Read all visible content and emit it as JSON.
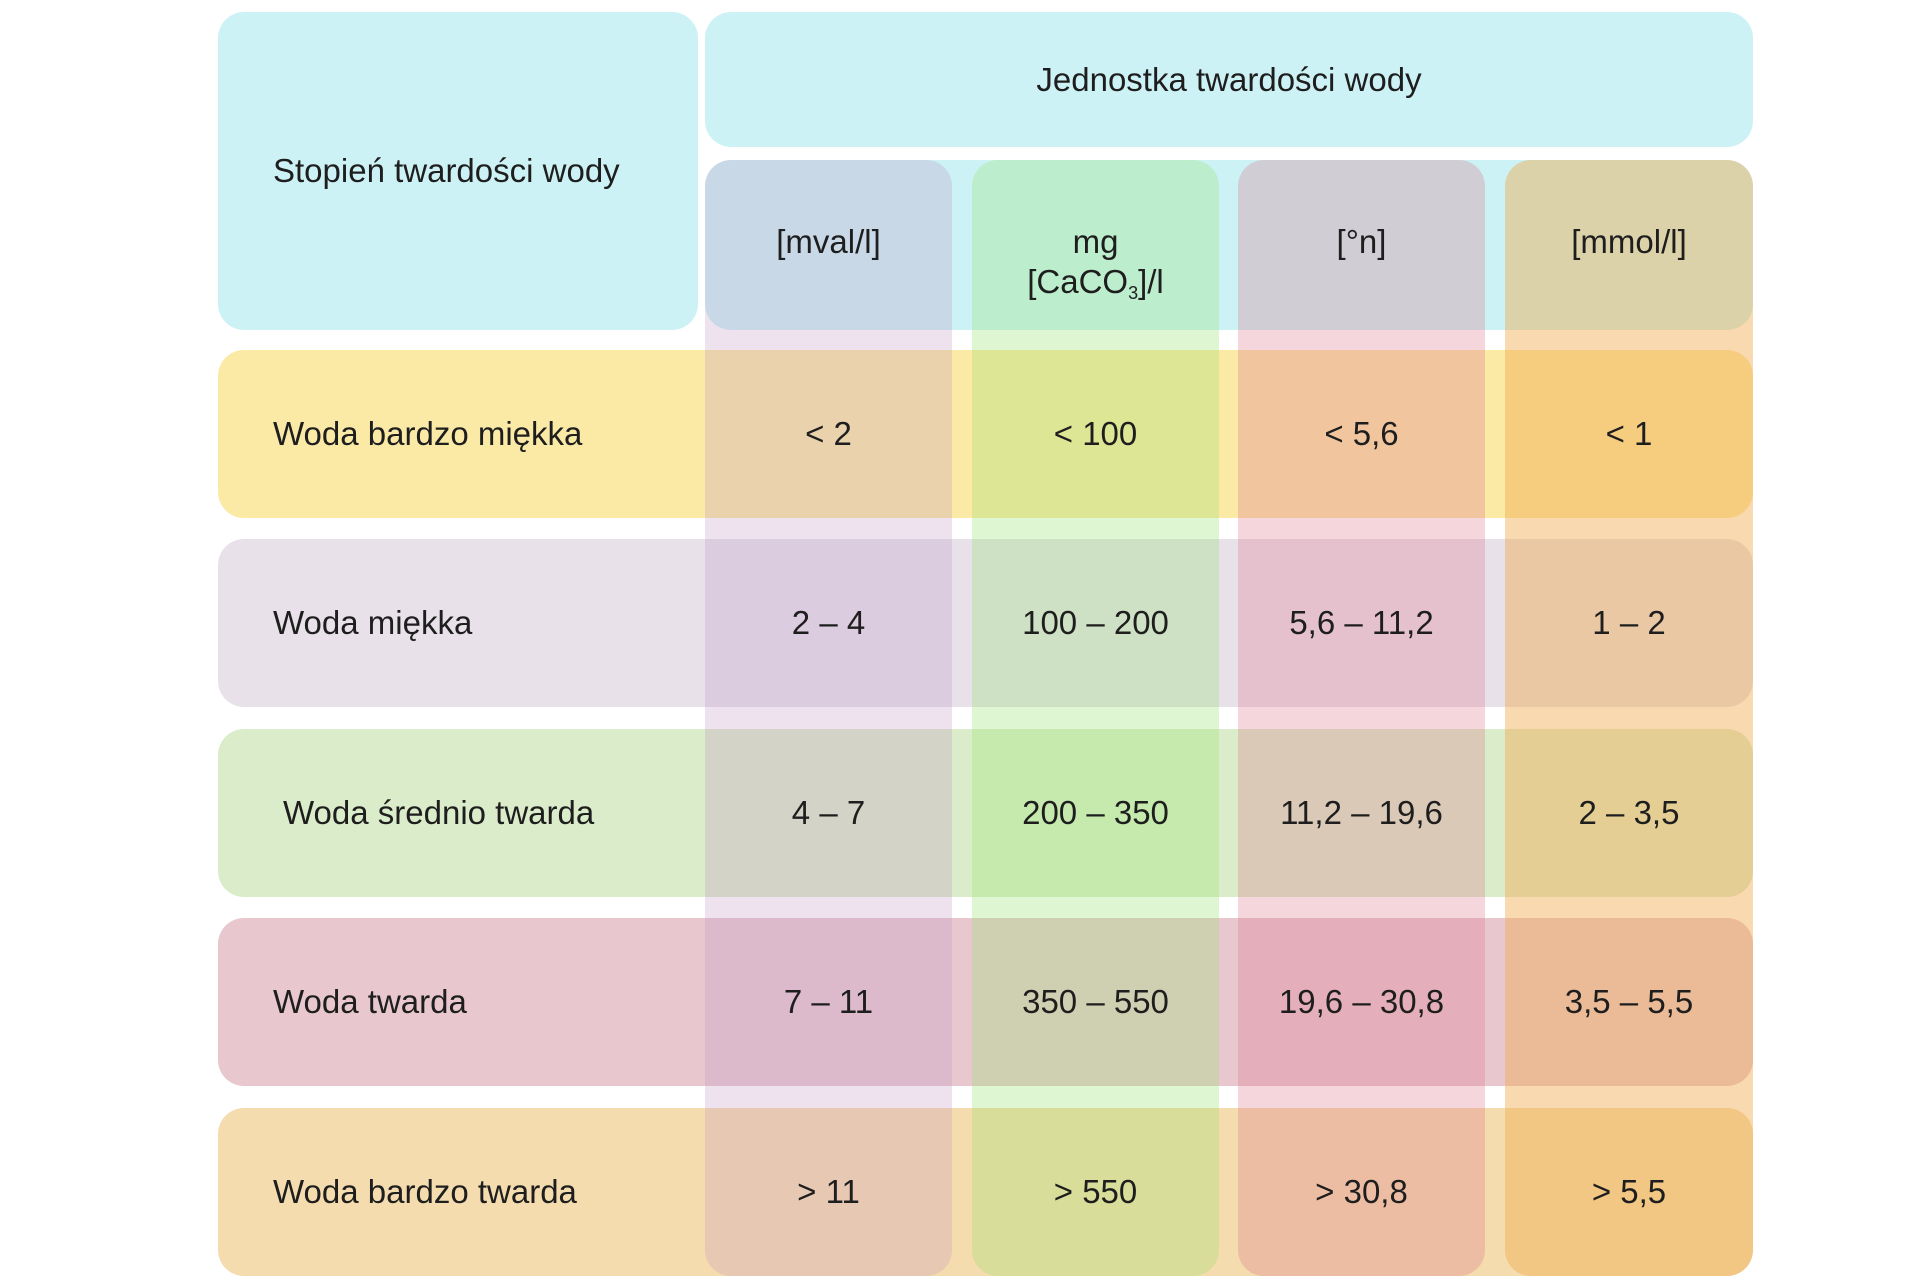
{
  "table": {
    "corner_label": "Stopień twardości wody",
    "group_header": "Jednostka twardości wody",
    "units": [
      {
        "label": "[mval/l]"
      },
      {
        "line1": "mg",
        "line2_pre": "[CaCO",
        "line2_sub": "3",
        "line2_post": "]/l"
      },
      {
        "label": "[°n]"
      },
      {
        "label": "[mmol/l]"
      }
    ],
    "rows": [
      {
        "label": "Woda bardzo miękka",
        "values": [
          "< 2",
          "< 100",
          "< 5,6",
          "< 1"
        ]
      },
      {
        "label": "Woda miękka",
        "values": [
          "2 – 4",
          "100 – 200",
          "5,6 – 11,2",
          "1 – 2"
        ]
      },
      {
        "label": "Woda średnio twarda",
        "values": [
          "4 – 7",
          "200 – 350",
          "11,2 – 19,6",
          "2 – 3,5"
        ]
      },
      {
        "label": "Woda twarda",
        "values": [
          "7 – 11",
          "350 – 550",
          "19,6 – 30,8",
          "3,5 – 5,5"
        ]
      },
      {
        "label": "Woda bardzo twarda",
        "values": [
          "> 11",
          "> 550",
          "> 30,8",
          "> 5,5"
        ]
      }
    ]
  },
  "colors": {
    "header": "#cdf2f5",
    "row_very_soft": "#fbe9a6",
    "row_soft": "#e8e1ea",
    "row_medium": "#dbecca",
    "row_hard": "#e8c7cf",
    "row_very_hard": "#f5dcae",
    "col_mval": "rgba(190,150,195,0.28)",
    "col_mg": "rgba(150,225,110,0.30)",
    "col_n": "rgba(220,120,140,0.30)",
    "col_mmol": "rgba(240,170,80,0.45)"
  }
}
